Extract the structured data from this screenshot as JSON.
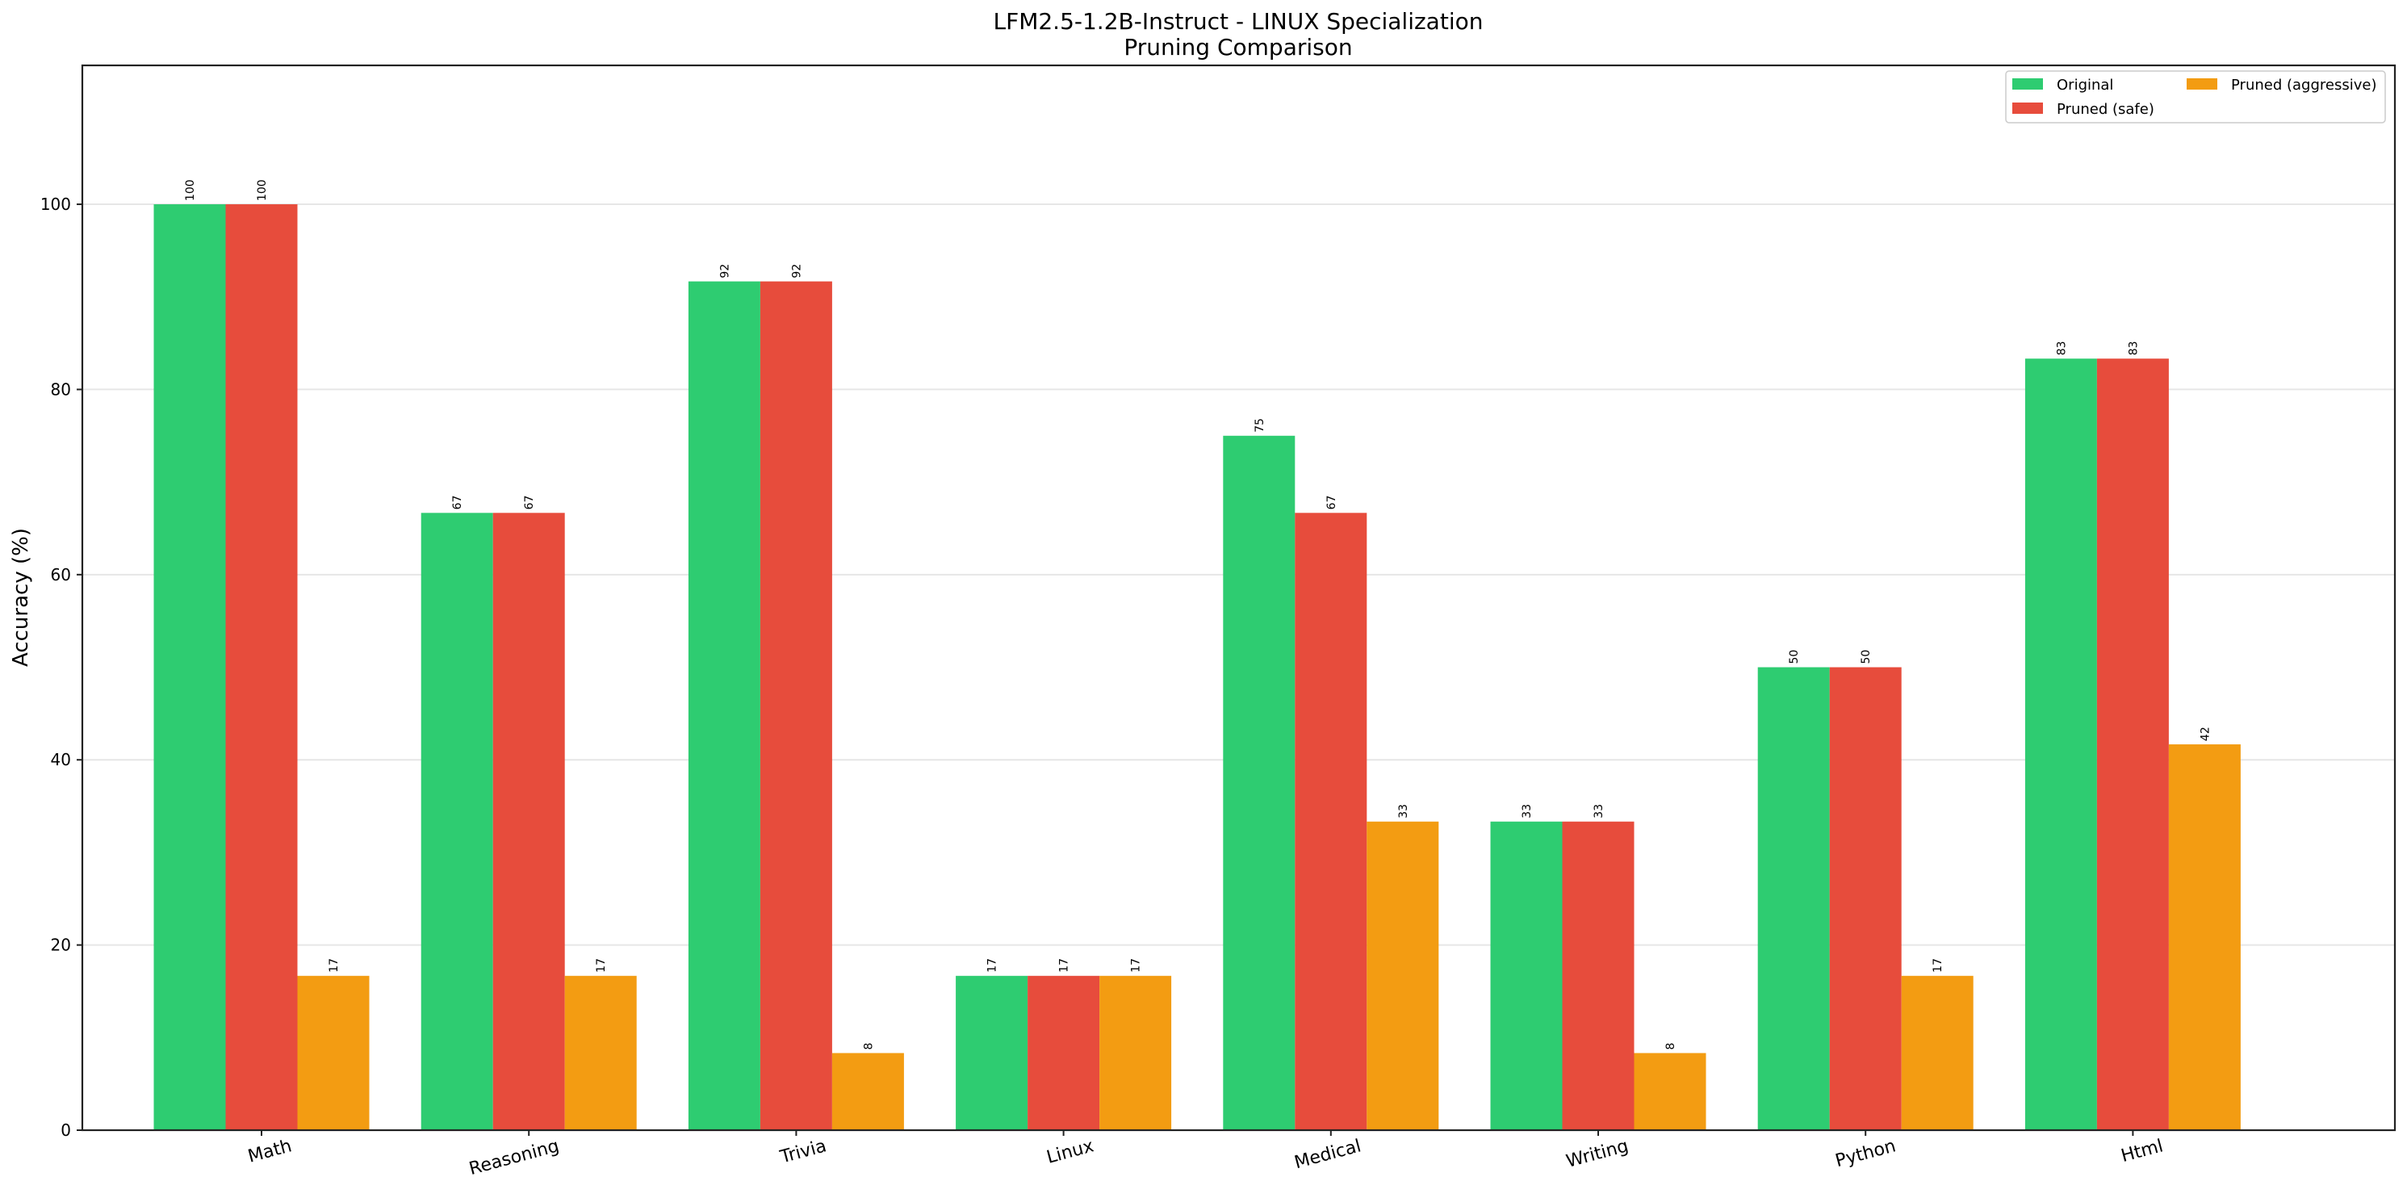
{
  "chart_data": {
    "type": "bar",
    "title": "LFM2.5-1.2B-Instruct - LINUX Specialization",
    "subtitle": "Pruning Comparison",
    "xlabel": "",
    "ylabel": "Accuracy (%)",
    "ylim": [
      0,
      115
    ],
    "yticks": [
      0,
      20,
      40,
      60,
      80,
      100
    ],
    "grid": "y",
    "legend_position": "upper right",
    "categories": [
      "Math",
      "Reasoning",
      "Trivia",
      "Linux",
      "Medical",
      "Writing",
      "Python",
      "Html"
    ],
    "series": [
      {
        "name": "Original",
        "color": "#2ecc71",
        "values": [
          100,
          66.67,
          91.67,
          16.67,
          75,
          33.33,
          50,
          83.33
        ],
        "labels": [
          "100",
          "67",
          "92",
          "17",
          "75",
          "33",
          "50",
          "83"
        ]
      },
      {
        "name": "Pruned (safe)",
        "color": "#e74c3c",
        "values": [
          100,
          66.67,
          91.67,
          16.67,
          66.67,
          33.33,
          50,
          83.33
        ],
        "labels": [
          "100",
          "67",
          "92",
          "17",
          "67",
          "33",
          "50",
          "83"
        ]
      },
      {
        "name": "Pruned (aggressive)",
        "color": "#f39c12",
        "values": [
          16.67,
          16.67,
          8.33,
          16.67,
          33.33,
          8.33,
          16.67,
          41.67
        ],
        "labels": [
          "17",
          "17",
          "8",
          "17",
          "33",
          "8",
          "17",
          "42"
        ]
      }
    ]
  }
}
